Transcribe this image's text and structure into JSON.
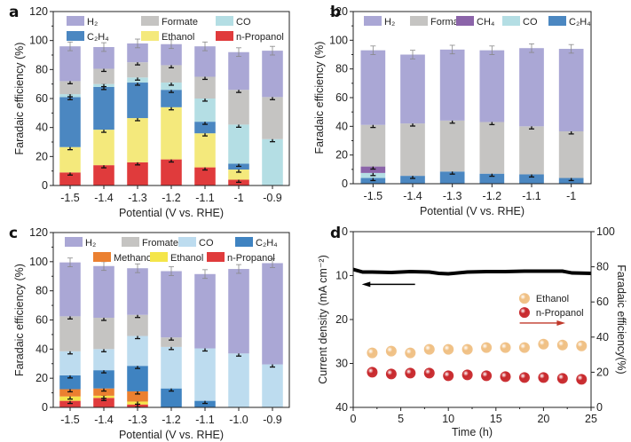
{
  "chart_data": [
    {
      "panel": "a",
      "type": "bar",
      "stacked": true,
      "xlabel": "Potential (V vs. RHE)",
      "ylabel": "Faradaic efficiency (%)",
      "ylim": [
        0,
        120
      ],
      "yticks": [
        0,
        20,
        40,
        60,
        80,
        100,
        120
      ],
      "legend": "top",
      "categories": [
        "-1.5",
        "-1.4",
        "-1.3",
        "-1.2",
        "-1.1",
        "-1",
        "-0.9"
      ],
      "series": [
        {
          "name": "n-Propanol",
          "color": "#e03b3c",
          "values": [
            9,
            14,
            16,
            18,
            12.5,
            4,
            0
          ]
        },
        {
          "name": "Ethanol",
          "color": "#f4e97c",
          "values": [
            17.5,
            24.5,
            30.5,
            36,
            23.5,
            7,
            0
          ]
        },
        {
          "name": "C2H4",
          "color": "#4b87c1",
          "values": [
            34.5,
            29.5,
            24.5,
            12,
            8,
            4,
            0
          ]
        },
        {
          "name": "CO",
          "color": "#b4dee4",
          "values": [
            2,
            2,
            3.5,
            5,
            16,
            27,
            32
          ]
        },
        {
          "name": "Formate",
          "color": "#c5c4c2",
          "values": [
            9,
            10.5,
            10.5,
            12,
            15,
            24,
            29
          ]
        },
        {
          "name": "H2",
          "color": "#aaa7d5",
          "values": [
            24,
            15,
            13,
            14.5,
            21,
            26,
            32
          ]
        }
      ],
      "legend_order": [
        "H2",
        "Formate",
        "CO",
        "C2H4",
        "Ethanol",
        "n-Propanol"
      ],
      "legend_labels": {
        "H2": "H₂",
        "Formate": "Formate",
        "CO": "CO",
        "C2H4": "C₂H₄",
        "Ethanol": "Ethanol",
        "n-Propanol": "n-Propanol"
      }
    },
    {
      "panel": "b",
      "type": "bar",
      "stacked": true,
      "xlabel": "Potential (V vs. RHE)",
      "ylabel": "Faradaic efficiency (%)",
      "ylim": [
        0,
        120
      ],
      "yticks": [
        0,
        20,
        40,
        60,
        80,
        100,
        120
      ],
      "legend": "top",
      "categories": [
        "-1.5",
        "-1.4",
        "-1.3",
        "-1.2",
        "-1.1",
        "-1"
      ],
      "series": [
        {
          "name": "C2H4",
          "color": "#4b87c1",
          "values": [
            4,
            5.5,
            8.5,
            7,
            6.5,
            4
          ]
        },
        {
          "name": "CO",
          "color": "#b4dee4",
          "values": [
            3.5,
            0,
            0,
            0,
            0,
            0
          ]
        },
        {
          "name": "CH4",
          "color": "#8b64a9",
          "values": [
            4.5,
            0,
            0,
            0,
            0,
            0
          ]
        },
        {
          "name": "Formate",
          "color": "#c5c4c2",
          "values": [
            29,
            36.5,
            35.5,
            36,
            33.5,
            32.5
          ]
        },
        {
          "name": "H2",
          "color": "#aaa7d5",
          "values": [
            52,
            48,
            49.5,
            50,
            54.5,
            57.5
          ]
        }
      ],
      "legend_order": [
        "H2",
        "Formate",
        "CH4",
        "CO",
        "C2H4"
      ],
      "legend_labels": {
        "H2": "H₂",
        "Formate": "Formate",
        "CH4": "CH₄",
        "CO": "CO",
        "C2H4": "C₂H₄"
      }
    },
    {
      "panel": "c",
      "type": "bar",
      "stacked": true,
      "xlabel": "Potential (V vs. RHE)",
      "ylabel": "Faradaic efficiency (%)",
      "ylim": [
        0,
        120
      ],
      "yticks": [
        0,
        20,
        40,
        60,
        80,
        100,
        120
      ],
      "legend": "top",
      "categories": [
        "-1.5",
        "-1.4",
        "-1.3",
        "-1.2",
        "-1.1",
        "-1.0",
        "-0.9"
      ],
      "series": [
        {
          "name": "n-Propanol",
          "color": "#e03b3c",
          "values": [
            4.5,
            6.5,
            2,
            0,
            0,
            0,
            0
          ]
        },
        {
          "name": "Ethanol",
          "color": "#f4e54a",
          "values": [
            3,
            1.5,
            2,
            0,
            0,
            0,
            0
          ]
        },
        {
          "name": "Methanol",
          "color": "#eb8030",
          "values": [
            5,
            5,
            7,
            0,
            0,
            0,
            0
          ]
        },
        {
          "name": "C2H4",
          "color": "#3f83c1",
          "values": [
            9.5,
            12.5,
            17.5,
            13,
            4.5,
            0,
            0
          ]
        },
        {
          "name": "CO",
          "color": "#bddcef",
          "values": [
            16.5,
            14.5,
            20.5,
            28.5,
            36,
            37,
            29.5
          ]
        },
        {
          "name": "Fromate",
          "color": "#c5c4c2",
          "values": [
            24,
            21.5,
            14.5,
            6.5,
            0,
            0,
            0
          ]
        },
        {
          "name": "H2",
          "color": "#aaa7d5",
          "values": [
            37,
            35.5,
            32,
            45.5,
            51,
            58,
            69.5
          ]
        }
      ],
      "legend_order": [
        "H2",
        "Fromate",
        "CO",
        "C2H4",
        "Methanol",
        "Ethanol",
        "n-Propanol"
      ],
      "legend_labels": {
        "H2": "H₂",
        "Fromate": "Fromate",
        "CO": "CO",
        "C2H4": "C₂H₄",
        "Methanol": "Methanol",
        "Ethanol": "Ethanol",
        "n-Propanol": "n-Propanol"
      }
    },
    {
      "panel": "d",
      "type": "scatter",
      "xlabel": "Time (h)",
      "ylabel": "Current density (mA cm⁻²)",
      "y2label": "Faradaic efficiency(%)",
      "xlim": [
        0,
        25
      ],
      "ylim": [
        0,
        40
      ],
      "y_inverted": true,
      "y2lim": [
        0,
        100
      ],
      "xticks": [
        0,
        5,
        10,
        15,
        20,
        25
      ],
      "yticks": [
        0,
        10,
        20,
        30,
        40
      ],
      "y2ticks": [
        0,
        20,
        40,
        60,
        80,
        100
      ],
      "legend": "center-right",
      "current_density": {
        "x": [
          0,
          1,
          2,
          4,
          6,
          8,
          9,
          10,
          12,
          14,
          16,
          18,
          20,
          22,
          23,
          25
        ],
        "y": [
          8.6,
          9.2,
          9.2,
          9.3,
          9.1,
          9.2,
          9.5,
          9.6,
          9.2,
          9.1,
          9.1,
          9.0,
          9.0,
          9.0,
          9.4,
          9.5
        ]
      },
      "series": [
        {
          "name": "Ethanol",
          "color": "#f0c084",
          "x": [
            2,
            4,
            6,
            8,
            10,
            12,
            14,
            16,
            18,
            20,
            22,
            24
          ],
          "y": [
            31,
            32,
            31,
            33,
            33,
            33,
            34,
            34,
            34,
            36,
            35.5,
            35
          ]
        },
        {
          "name": "n-Propanol",
          "color": "#c8282c",
          "x": [
            2,
            4,
            6,
            8,
            10,
            12,
            14,
            16,
            18,
            20,
            22,
            24
          ],
          "y": [
            20,
            19,
            19.5,
            19.5,
            18,
            18.5,
            18,
            17.5,
            17,
            17,
            16.5,
            16
          ]
        }
      ]
    }
  ],
  "panel_labels": [
    "a",
    "b",
    "c",
    "d"
  ]
}
